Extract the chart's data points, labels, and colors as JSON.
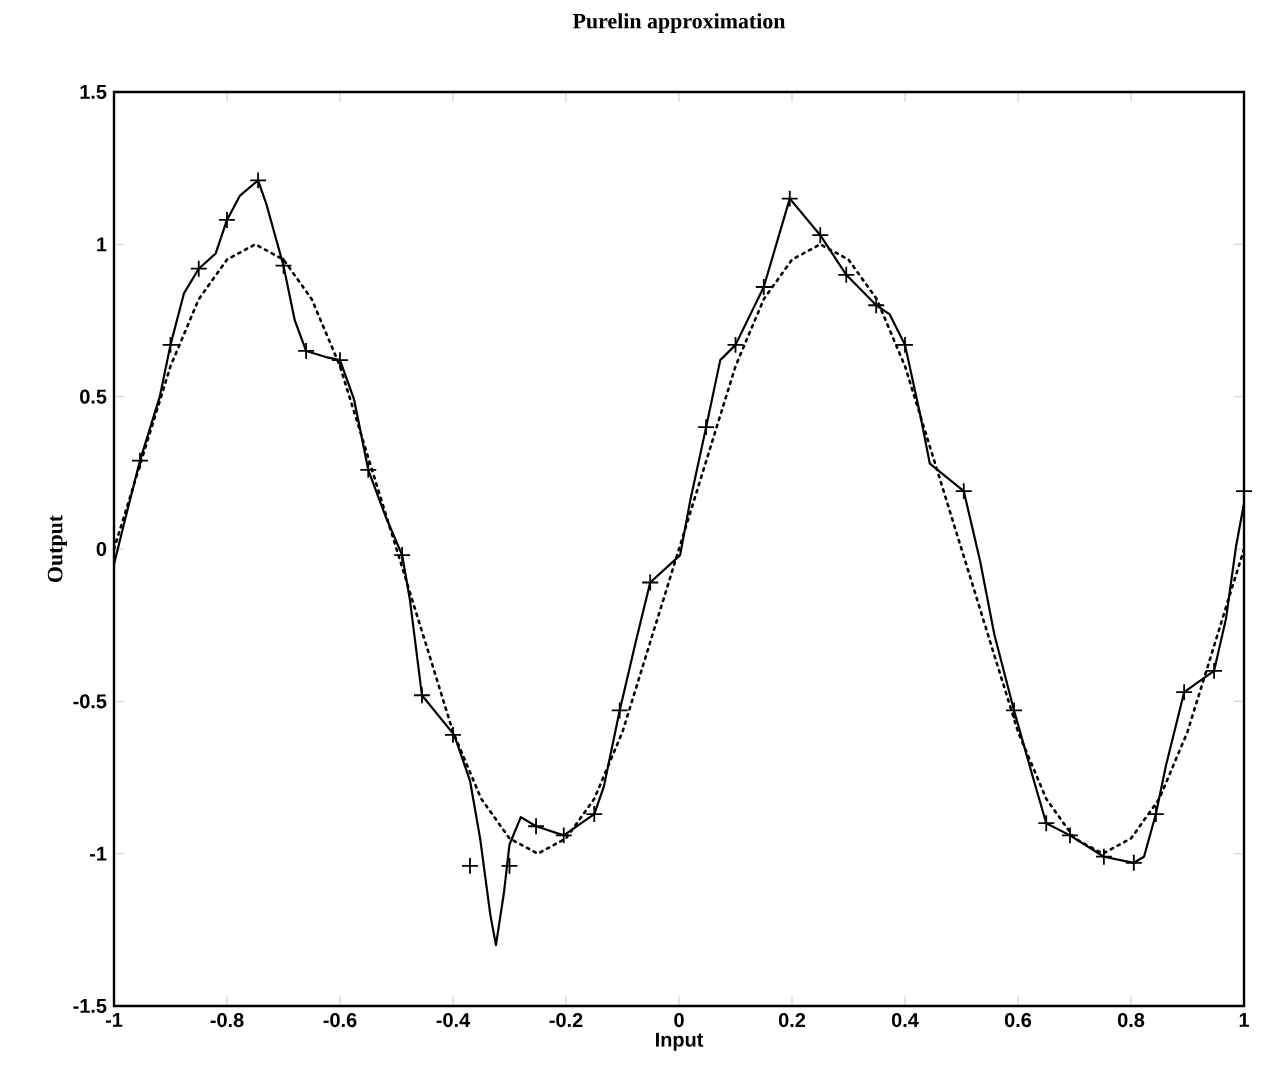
{
  "chart_data": {
    "type": "line",
    "title": "Purelin approximation",
    "xlabel": "Input",
    "ylabel": "Output",
    "xlim": [
      -1,
      1
    ],
    "ylim": [
      -1.5,
      1.5
    ],
    "xticks": [
      -1,
      -0.8,
      -0.6,
      -0.4,
      -0.2,
      0,
      0.2,
      0.4,
      0.6,
      0.8,
      1
    ],
    "yticks": [
      -1.5,
      -1,
      -0.5,
      0,
      0.5,
      1,
      1.5
    ],
    "grid": false,
    "series": [
      {
        "color": "#000000",
        "line_style": "solid",
        "marker": "none",
        "x": [
          -1,
          -0.98,
          -0.954,
          -0.919,
          -0.9,
          -0.876,
          -0.85,
          -0.82,
          -0.8,
          -0.777,
          -0.745,
          -0.73,
          -0.7,
          -0.68,
          -0.66,
          -0.625,
          -0.6,
          -0.575,
          -0.55,
          -0.52,
          -0.49,
          -0.476,
          -0.455,
          -0.398,
          -0.37,
          -0.352,
          -0.334,
          -0.324,
          -0.31,
          -0.3,
          -0.28,
          -0.253,
          -0.204,
          -0.15,
          -0.133,
          -0.105,
          -0.076,
          -0.051,
          0.002,
          0.02,
          0.048,
          0.073,
          0.1,
          0.15,
          0.196,
          0.25,
          0.296,
          0.349,
          0.373,
          0.4,
          0.427,
          0.444,
          0.504,
          0.533,
          0.558,
          0.593,
          0.628,
          0.65,
          0.692,
          0.752,
          0.805,
          0.823,
          0.844,
          0.862,
          0.894,
          0.947,
          0.968,
          0.986,
          1
        ],
        "values": [
          -0.05,
          0.1,
          0.29,
          0.5,
          0.67,
          0.84,
          0.92,
          0.97,
          1.08,
          1.16,
          1.21,
          1.13,
          0.93,
          0.75,
          0.65,
          0.63,
          0.62,
          0.49,
          0.26,
          0.11,
          -0.02,
          -0.17,
          -0.48,
          -0.61,
          -0.76,
          -0.95,
          -1.2,
          -1.3,
          -1.13,
          -0.97,
          -0.88,
          -0.91,
          -0.94,
          -0.87,
          -0.78,
          -0.53,
          -0.3,
          -0.11,
          -0.02,
          0.16,
          0.4,
          0.62,
          0.67,
          0.86,
          1.15,
          1.03,
          0.9,
          0.8,
          0.77,
          0.67,
          0.44,
          0.28,
          0.19,
          -0.04,
          -0.28,
          -0.53,
          -0.76,
          -0.9,
          -0.94,
          -1.01,
          -1.03,
          -1.01,
          -0.87,
          -0.71,
          -0.47,
          -0.4,
          -0.23,
          0.01,
          0.15
        ]
      },
      {
        "color": "#000000",
        "line_style": "dotted",
        "marker": "none",
        "x": [
          -1,
          -0.95,
          -0.9,
          -0.85,
          -0.8,
          -0.75,
          -0.7,
          -0.65,
          -0.6,
          -0.55,
          -0.5,
          -0.45,
          -0.4,
          -0.35,
          -0.3,
          -0.25,
          -0.2,
          -0.15,
          -0.1,
          -0.05,
          0,
          0.05,
          0.1,
          0.15,
          0.2,
          0.25,
          0.3,
          0.35,
          0.4,
          0.45,
          0.5,
          0.55,
          0.6,
          0.65,
          0.7,
          0.75,
          0.8,
          0.85,
          0.9,
          0.95,
          1
        ],
        "values": [
          0,
          0.3,
          0.6,
          0.82,
          0.95,
          1,
          0.95,
          0.82,
          0.6,
          0.3,
          0,
          -0.3,
          -0.6,
          -0.82,
          -0.95,
          -1,
          -0.95,
          -0.82,
          -0.6,
          -0.3,
          0,
          0.3,
          0.6,
          0.82,
          0.95,
          1,
          0.95,
          0.82,
          0.6,
          0.3,
          0,
          -0.3,
          -0.6,
          -0.82,
          -0.95,
          -1,
          -0.95,
          -0.82,
          -0.6,
          -0.3,
          0
        ]
      },
      {
        "type": "scatter",
        "color": "#000000",
        "marker": "cross",
        "x": [
          -0.954,
          -0.9,
          -0.85,
          -0.8,
          -0.745,
          -0.7,
          -0.66,
          -0.6,
          -0.55,
          -0.49,
          -0.455,
          -0.4,
          -0.37,
          -0.3,
          -0.253,
          -0.204,
          -0.15,
          -0.105,
          -0.051,
          0.048,
          0.1,
          0.15,
          0.196,
          0.25,
          0.296,
          0.349,
          0.4,
          0.504,
          0.593,
          0.65,
          0.692,
          0.752,
          0.805,
          0.844,
          0.894,
          0.947,
          1
        ],
        "values": [
          0.29,
          0.67,
          0.92,
          1.08,
          1.21,
          0.93,
          0.65,
          0.62,
          0.26,
          -0.02,
          -0.48,
          -0.61,
          -1.04,
          -1.04,
          -0.91,
          -0.94,
          -0.87,
          -0.53,
          -0.11,
          0.4,
          0.67,
          0.86,
          1.15,
          1.03,
          0.9,
          0.8,
          0.67,
          0.19,
          -0.53,
          -0.9,
          -0.94,
          -1.01,
          -1.03,
          -0.87,
          -0.47,
          -0.4,
          0.19
        ]
      }
    ]
  }
}
